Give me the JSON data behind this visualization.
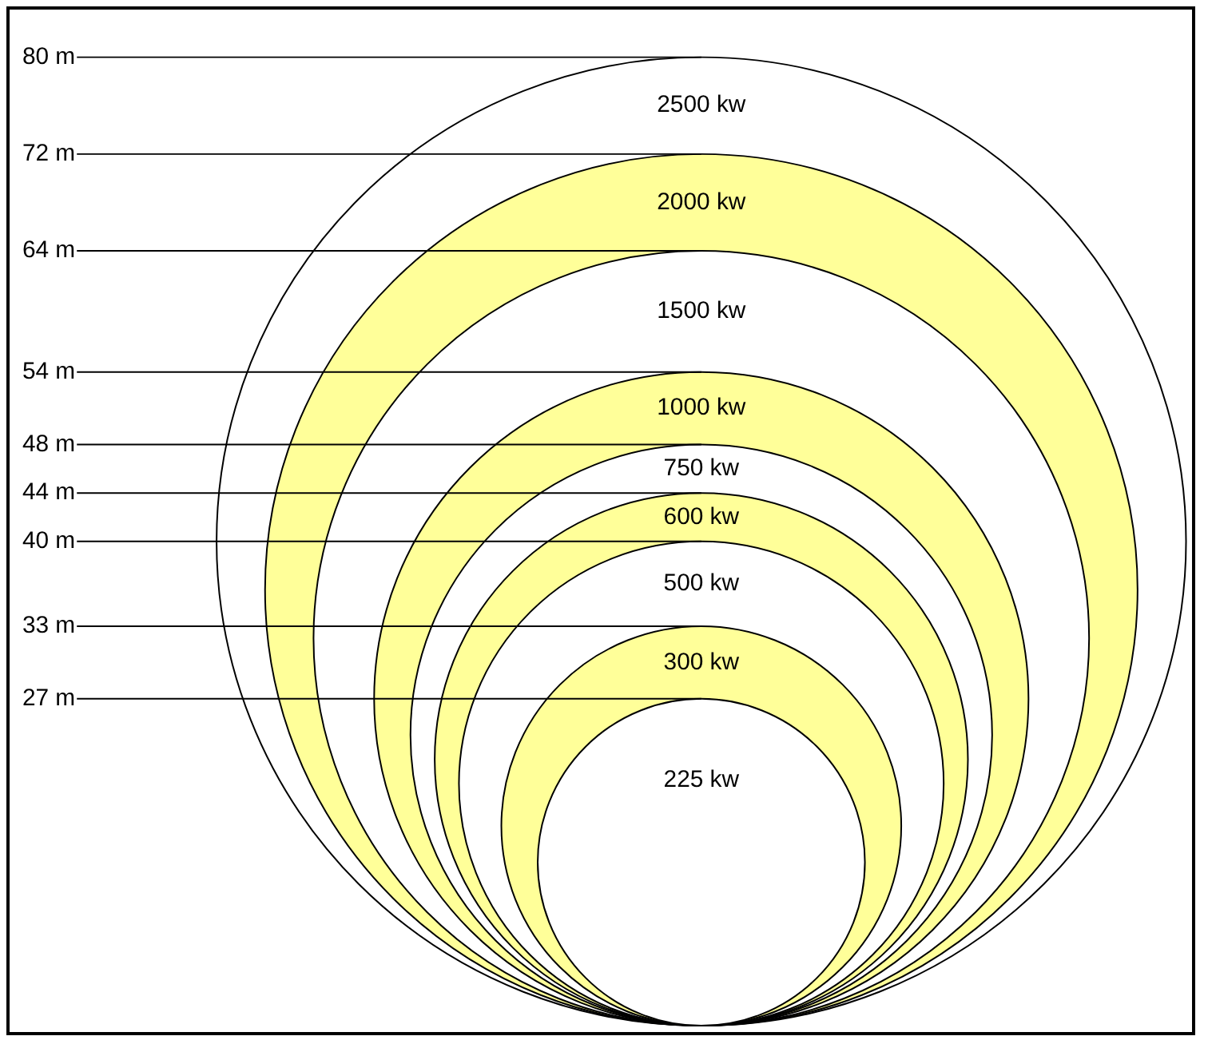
{
  "chart_data": {
    "type": "other",
    "categories": [
      "225 kw",
      "300 kw",
      "500 kw",
      "600 kw",
      "750 kw",
      "1000 kw",
      "1500 kw",
      "2000 kw",
      "2500 kw"
    ],
    "values": [
      27,
      33,
      40,
      44,
      48,
      54,
      64,
      72,
      80
    ],
    "value_labels": [
      "27 m",
      "33 m",
      "40 m",
      "44 m",
      "48 m",
      "54 m",
      "64 m",
      "72 m",
      "80 m"
    ],
    "colors": [
      "#ffffff",
      "#ffff99",
      "#ffffff",
      "#ffff99",
      "#ffffff",
      "#ffff99",
      "#ffffff",
      "#ffff99",
      "#ffffff"
    ]
  }
}
